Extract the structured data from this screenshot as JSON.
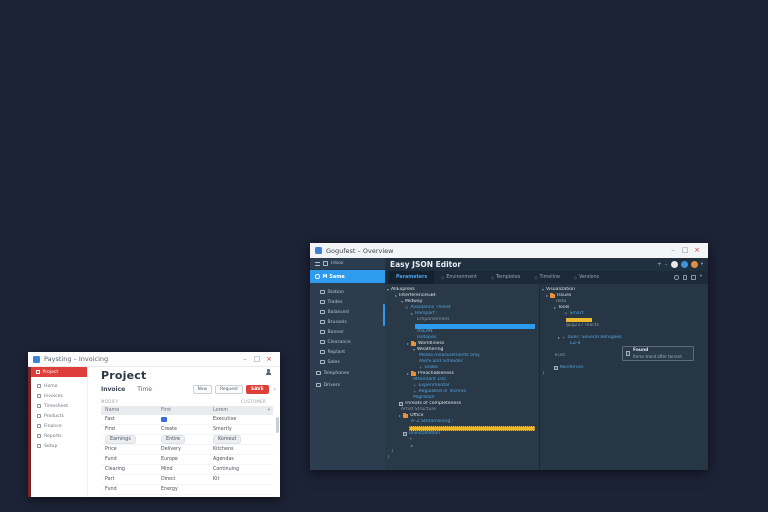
{
  "window_controls": {
    "minimize": "–",
    "maximize": "□",
    "close": "×"
  },
  "colors": {
    "desktop_bg": "#1d2337",
    "light_accent_red": "#dd3f3a",
    "dark_accent_blue": "#2f9bee",
    "highlight_yellow": "#edb82d",
    "folder_orange": "#e8913a",
    "app_icon_blue": "#3b82d8"
  },
  "light_window": {
    "title": "Paysting – Invoicing",
    "sidebar": {
      "selected": "Project",
      "items": [
        "Home",
        "Invoices",
        "Timesheet",
        "Products",
        "Finance",
        "Reports",
        "Setup"
      ]
    },
    "page_title": "Project",
    "tabs": {
      "first": "Invoice",
      "second": "Time"
    },
    "buttons": {
      "new": "New",
      "request": "Request",
      "save": "SAVE",
      "next": "›"
    },
    "section_labels": {
      "left": "MODIFY",
      "right": "CUSTOMER"
    },
    "table": {
      "headers": [
        "Name",
        "First",
        "Lorem"
      ],
      "sort_icon": "▾",
      "rows": [
        {
          "c": [
            "Fast",
            "",
            "Executive"
          ],
          "icon": 1
        },
        {
          "c": [
            "Find",
            "Create",
            "Smartly"
          ]
        },
        {
          "c": [
            "Earnings",
            "Entire",
            "Komeut"
          ],
          "pill": true
        },
        {
          "c": [
            "Price",
            "Delivery",
            "Kitchens"
          ]
        },
        {
          "c": [
            "Fund",
            "Europe",
            "Agendas"
          ]
        },
        {
          "c": [
            "Clearing",
            "Mind",
            "Continuing"
          ]
        },
        {
          "c": [
            "Part",
            "Direct",
            "Kit"
          ]
        },
        {
          "c": [
            "Fund",
            "Energy",
            ""
          ]
        }
      ]
    }
  },
  "dark_window": {
    "title": "Gogufest – Overview",
    "header_title": "Easy JSON Editor",
    "header_icons": {
      "add": "+",
      "remove": "–",
      "caret": "▾"
    },
    "sidebar": {
      "top_label": "Inbox",
      "selected": "M Same",
      "items": [
        "Station",
        "Trades",
        "Balanced",
        "Brussels",
        "Banner",
        "Clearance",
        "Replant",
        "Sales"
      ],
      "bottom_items": [
        "Telephones",
        "Drivers"
      ]
    },
    "tabs": [
      {
        "label": "Parameters",
        "active": true
      },
      {
        "label": "Environment"
      },
      {
        "label": "Templates"
      },
      {
        "label": "Timeline"
      },
      {
        "label": "Versions"
      }
    ],
    "tree_left": [
      {
        "a": "d",
        "t": "AllExpress",
        "c": "w",
        "ind": 2
      },
      {
        "a": "r",
        "t": "InterferenceGBF",
        "c": "w",
        "ind": 10
      },
      {
        "a": "d",
        "t": "Midway",
        "c": "w",
        "ind": 16
      },
      {
        "i": "eq",
        "t": "Avoidance Threat",
        "c": "b",
        "ind": 20
      },
      {
        "a": "r",
        "t": "Rampart :",
        "c": "b",
        "ind": 26
      },
      {
        "t": "Empanelment",
        "c": "g",
        "ind": 32
      },
      {
        "sel": "blue",
        "ind": 30
      },
      {
        "t": "ASEAN",
        "c": "b",
        "ind": 32
      },
      {
        "t": "Isotopes",
        "c": "b",
        "ind": 32
      },
      {
        "a": "r",
        "i": "f",
        "t": "Worldliness",
        "c": "w",
        "ind": 22
      },
      {
        "a": "d",
        "t": "Weathering",
        "c": "w",
        "ind": 28
      },
      {
        "t": "Media measurements only",
        "c": "b",
        "ind": 34
      },
      {
        "t": "ASVS and Scheider",
        "c": "b",
        "ind": 34
      },
      {
        "i": "pl",
        "t": "Globe",
        "c": "b",
        "ind": 34
      },
      {
        "a": "r",
        "i": "f",
        "t": "Preachableness",
        "c": "w",
        "ind": 22
      },
      {
        "t": "Attendant 105",
        "c": "b",
        "ind": 28
      },
      {
        "i": "pl",
        "t": "Experimental",
        "c": "b",
        "ind": 28
      },
      {
        "i": "pl",
        "t": "Regulated in Technik",
        "c": "b",
        "ind": 28
      },
      {
        "t": "Migration",
        "c": "b",
        "ind": 28
      },
      {
        "i": "d",
        "t": "Threats of completeness",
        "c": "w",
        "ind": 14
      },
      {
        "t": "Artist Structure",
        "c": "g",
        "ind": 16
      },
      {
        "a": "r",
        "i": "f",
        "t": "Office",
        "c": "w",
        "ind": 14
      },
      {
        "t": "A–Z Streamlining :",
        "c": "b",
        "ind": 26
      },
      {
        "sel": "yellow",
        "ind": 24
      },
      {
        "i": "d",
        "t": "Uninstallation",
        "c": "b",
        "ind": 18
      },
      {
        "t": "+",
        "c": "g",
        "ind": 24
      },
      {
        "a": "r",
        "t": "",
        "c": "g",
        "ind": 26
      },
      {
        "t": "]",
        "c": "g",
        "ind": 6
      },
      {
        "t": "}",
        "c": "g",
        "ind": 2
      }
    ],
    "tree_right": [
      {
        "a": "d",
        "t": "Visualization",
        "c": "w",
        "ind": 2
      },
      {
        "a": "r",
        "i": "f",
        "t": "Issues",
        "c": "w",
        "ind": 6
      },
      {
        "t": "data",
        "c": "g",
        "ind": 16
      },
      {
        "a": "r",
        "t": "Tools",
        "c": "w",
        "ind": 14
      },
      {
        "i": "eq",
        "t": "Smart",
        "c": "b",
        "ind": 24
      },
      {
        "pill": "yellow",
        "ind": 26
      },
      {
        "t": "gog227 reacts",
        "c": "g",
        "ind": 26
      },
      {
        "t": "",
        "ind": 0
      },
      {
        "i": "pl",
        "a": "r",
        "t": "tools: Several Refugees",
        "c": "b",
        "ind": 18
      },
      {
        "t": "EZ-4",
        "c": "b",
        "ind": 30
      },
      {
        "t": "",
        "ind": 0
      },
      {
        "t": "Trust",
        "c": "g",
        "ind": 14
      },
      {
        "t": "",
        "ind": 0
      },
      {
        "i": "d",
        "t": "Reinforces",
        "c": "b",
        "ind": 14
      },
      {
        "t": "}",
        "c": "g",
        "ind": 2
      }
    ],
    "tooltip": {
      "title": "Found",
      "subtitle": "Items trend after torrent"
    }
  }
}
